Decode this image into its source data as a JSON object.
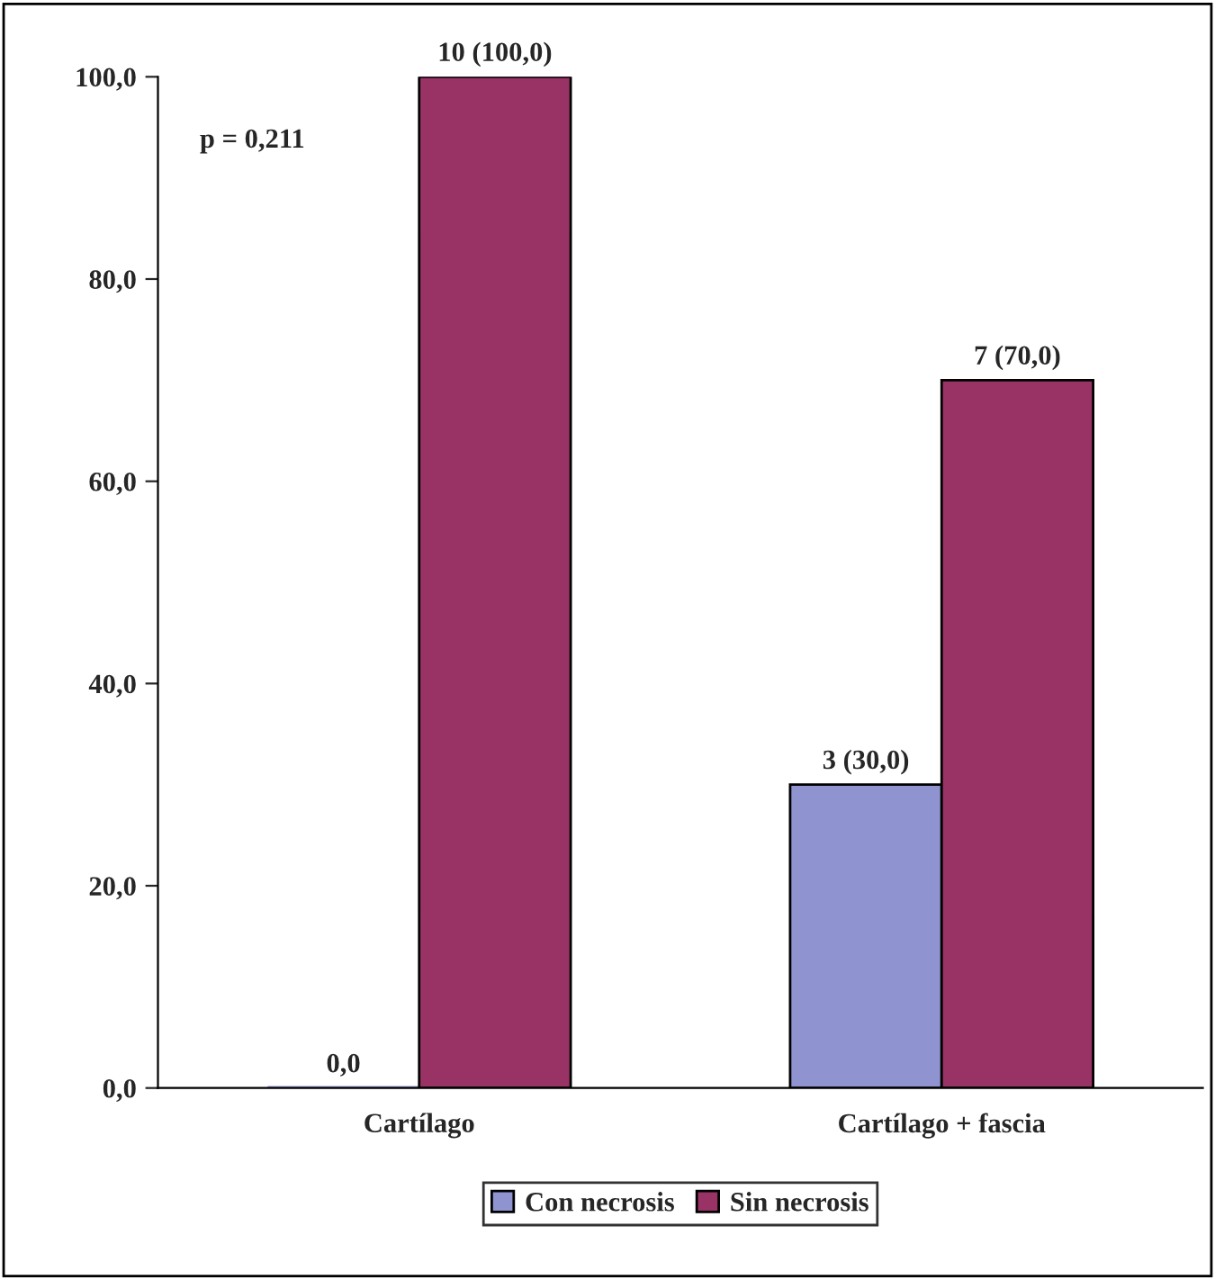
{
  "chart_data": {
    "type": "bar",
    "categories": [
      "Cartílago",
      "Cartílago + fascia"
    ],
    "series": [
      {
        "name": "Con necrosis",
        "color": "#8f94d0",
        "values": [
          0,
          30
        ],
        "value_labels": [
          "0,0",
          "3 (30,0)"
        ]
      },
      {
        "name": "Sin necrosis",
        "color": "#993366",
        "values": [
          100,
          70
        ],
        "value_labels": [
          "10 (100,0)",
          "7 (70,0)"
        ]
      }
    ],
    "ylim": [
      0,
      100
    ],
    "yticks": [
      {
        "value": 0,
        "label": "0,0"
      },
      {
        "value": 20,
        "label": "20,0"
      },
      {
        "value": 40,
        "label": "40,0"
      },
      {
        "value": 60,
        "label": "60,0"
      },
      {
        "value": 80,
        "label": "80,0"
      },
      {
        "value": 100,
        "label": "100,0"
      }
    ],
    "annotations": [
      "p = 0,211"
    ],
    "grid": false,
    "legend": "bottom"
  }
}
